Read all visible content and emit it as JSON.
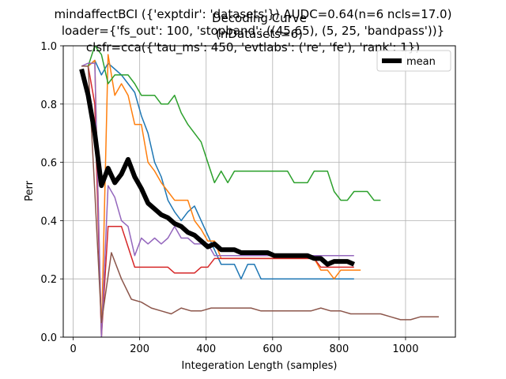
{
  "chart_data": {
    "type": "line",
    "title_lines": [
      "mindaffectBCI ({'exptdir': 'datasets'}) AUDC=0.64(n=6 ncls=17.0)",
      "loader={'fs_out': 100, 'stopband': ((45,65), (5, 25, 'bandpass'))}",
      "clsfr=cca({'tau_ms': 450, 'evtlabs': ('re', 'fe'), 'rank': 1})"
    ],
    "overlay_title_lines": [
      "Decoding Curve",
      "(nDatasets=6)"
    ],
    "xlabel": "Integeration Length (samples)",
    "ylabel": "Perr",
    "xlim": [
      -30,
      1150
    ],
    "ylim": [
      0,
      1.0
    ],
    "xticks": [
      0,
      200,
      400,
      600,
      800,
      1000
    ],
    "yticks": [
      0.0,
      0.2,
      0.4,
      0.6,
      0.8,
      1.0
    ],
    "xtick_labels": [
      "0",
      "200",
      "400",
      "600",
      "800",
      "1000"
    ],
    "ytick_labels": [
      "0.0",
      "0.2",
      "0.4",
      "0.6",
      "0.8",
      "1.0"
    ],
    "grid": true,
    "legend_position": "top-right",
    "series": [
      {
        "color": "#1f77b4",
        "width": 1.5,
        "x": [
          25,
          45,
          65,
          85,
          105,
          125,
          145,
          165,
          185,
          205,
          225,
          245,
          265,
          285,
          305,
          325,
          345,
          365,
          385,
          405,
          425,
          445,
          465,
          485,
          505,
          525,
          545,
          565,
          585,
          605,
          625,
          645,
          665,
          685,
          705,
          725,
          745,
          765,
          785,
          805,
          825,
          845
        ],
        "y": [
          0.93,
          0.93,
          0.95,
          0.9,
          0.94,
          0.92,
          0.9,
          0.87,
          0.84,
          0.76,
          0.7,
          0.6,
          0.55,
          0.47,
          0.43,
          0.4,
          0.43,
          0.45,
          0.4,
          0.35,
          0.3,
          0.25,
          0.25,
          0.25,
          0.2,
          0.25,
          0.25,
          0.2,
          0.2,
          0.2,
          0.2,
          0.2,
          0.2,
          0.2,
          0.2,
          0.2,
          0.2,
          0.2,
          0.2,
          0.2,
          0.2,
          0.2
        ]
      },
      {
        "color": "#ff7f0e",
        "width": 1.5,
        "x": [
          25,
          45,
          65,
          85,
          105,
          125,
          145,
          165,
          185,
          205,
          225,
          245,
          265,
          285,
          305,
          325,
          345,
          365,
          385,
          405,
          425,
          445,
          465,
          485,
          505,
          525,
          545,
          565,
          585,
          605,
          625,
          645,
          665,
          685,
          705,
          725,
          745,
          765,
          785,
          805,
          825,
          845,
          865
        ],
        "y": [
          0.93,
          0.93,
          0.95,
          0.0,
          0.97,
          0.83,
          0.87,
          0.83,
          0.73,
          0.73,
          0.6,
          0.57,
          0.53,
          0.5,
          0.47,
          0.47,
          0.47,
          0.4,
          0.37,
          0.33,
          0.33,
          0.27,
          0.27,
          0.27,
          0.27,
          0.27,
          0.27,
          0.27,
          0.27,
          0.27,
          0.27,
          0.27,
          0.27,
          0.27,
          0.27,
          0.27,
          0.23,
          0.23,
          0.2,
          0.23,
          0.23,
          0.23,
          0.23
        ]
      },
      {
        "color": "#2ca02c",
        "width": 1.5,
        "x": [
          25,
          45,
          65,
          85,
          105,
          125,
          145,
          165,
          185,
          205,
          225,
          245,
          265,
          285,
          305,
          325,
          345,
          365,
          385,
          405,
          425,
          445,
          465,
          485,
          505,
          525,
          545,
          565,
          585,
          605,
          625,
          645,
          665,
          685,
          705,
          725,
          745,
          765,
          785,
          805,
          825,
          845,
          865,
          885,
          905,
          925
        ],
        "y": [
          0.93,
          0.93,
          1.0,
          0.97,
          0.87,
          0.9,
          0.9,
          0.9,
          0.87,
          0.83,
          0.83,
          0.83,
          0.8,
          0.8,
          0.83,
          0.77,
          0.73,
          0.7,
          0.67,
          0.6,
          0.53,
          0.57,
          0.53,
          0.57,
          0.57,
          0.57,
          0.57,
          0.57,
          0.57,
          0.57,
          0.57,
          0.57,
          0.53,
          0.53,
          0.53,
          0.57,
          0.57,
          0.57,
          0.5,
          0.47,
          0.47,
          0.5,
          0.5,
          0.5,
          0.47,
          0.47
        ]
      },
      {
        "color": "#d62728",
        "width": 1.5,
        "x": [
          25,
          45,
          65,
          85,
          105,
          125,
          145,
          165,
          185,
          205,
          225,
          245,
          265,
          285,
          305,
          325,
          345,
          365,
          385,
          405,
          425,
          445,
          465,
          485,
          505,
          525,
          545,
          565,
          585,
          605,
          625,
          645,
          665,
          685,
          705,
          725,
          745,
          765,
          785,
          805,
          825,
          845
        ],
        "y": [
          0.93,
          0.93,
          0.8,
          0.0,
          0.38,
          0.38,
          0.38,
          0.31,
          0.24,
          0.24,
          0.24,
          0.24,
          0.24,
          0.24,
          0.22,
          0.22,
          0.22,
          0.22,
          0.24,
          0.24,
          0.27,
          0.27,
          0.27,
          0.27,
          0.27,
          0.27,
          0.27,
          0.27,
          0.27,
          0.27,
          0.27,
          0.27,
          0.27,
          0.27,
          0.27,
          0.27,
          0.24,
          0.24,
          0.24,
          0.24,
          0.24,
          0.24
        ]
      },
      {
        "color": "#9467bd",
        "width": 1.5,
        "x": [
          25,
          45,
          65,
          85,
          105,
          125,
          145,
          165,
          185,
          205,
          225,
          245,
          265,
          285,
          305,
          325,
          345,
          365,
          385,
          405,
          425,
          445,
          465,
          485,
          505,
          525,
          545,
          565,
          585,
          605,
          625,
          645,
          665,
          685,
          705,
          725,
          745,
          765,
          785,
          805,
          825,
          845
        ],
        "y": [
          0.93,
          0.94,
          0.94,
          0.0,
          0.52,
          0.48,
          0.4,
          0.38,
          0.28,
          0.34,
          0.32,
          0.34,
          0.32,
          0.34,
          0.38,
          0.34,
          0.34,
          0.32,
          0.32,
          0.32,
          0.28,
          0.28,
          0.28,
          0.28,
          0.28,
          0.28,
          0.28,
          0.28,
          0.28,
          0.28,
          0.28,
          0.28,
          0.28,
          0.28,
          0.28,
          0.28,
          0.28,
          0.28,
          0.28,
          0.28,
          0.28,
          0.28
        ]
      },
      {
        "color": "#8c564b",
        "width": 1.5,
        "x": [
          25,
          45,
          65,
          85,
          115,
          145,
          175,
          205,
          235,
          265,
          295,
          325,
          355,
          385,
          415,
          445,
          475,
          505,
          535,
          565,
          595,
          625,
          655,
          685,
          715,
          745,
          775,
          805,
          835,
          865,
          895,
          925,
          955,
          985,
          1015,
          1045,
          1075,
          1100
        ],
        "y": [
          0.93,
          0.93,
          0.5,
          0.05,
          0.29,
          0.2,
          0.13,
          0.12,
          0.1,
          0.09,
          0.08,
          0.1,
          0.09,
          0.09,
          0.1,
          0.1,
          0.1,
          0.1,
          0.1,
          0.09,
          0.09,
          0.09,
          0.09,
          0.09,
          0.09,
          0.1,
          0.09,
          0.09,
          0.08,
          0.08,
          0.08,
          0.08,
          0.07,
          0.06,
          0.06,
          0.07,
          0.07,
          0.07
        ]
      },
      {
        "name": "mean",
        "color": "#000000",
        "width": 6,
        "x": [
          25,
          45,
          65,
          85,
          105,
          125,
          145,
          165,
          185,
          205,
          225,
          245,
          265,
          285,
          305,
          325,
          345,
          365,
          385,
          405,
          425,
          445,
          465,
          485,
          505,
          525,
          545,
          565,
          585,
          605,
          625,
          645,
          665,
          685,
          705,
          725,
          745,
          765,
          785,
          805,
          825,
          845
        ],
        "y": [
          0.92,
          0.83,
          0.7,
          0.52,
          0.58,
          0.53,
          0.56,
          0.61,
          0.55,
          0.51,
          0.46,
          0.44,
          0.42,
          0.41,
          0.39,
          0.38,
          0.36,
          0.35,
          0.33,
          0.31,
          0.32,
          0.3,
          0.3,
          0.3,
          0.29,
          0.29,
          0.29,
          0.29,
          0.29,
          0.28,
          0.28,
          0.28,
          0.28,
          0.28,
          0.28,
          0.27,
          0.27,
          0.25,
          0.26,
          0.26,
          0.26,
          0.25
        ]
      }
    ],
    "legend": [
      {
        "label": "mean",
        "color": "#000000"
      }
    ]
  }
}
